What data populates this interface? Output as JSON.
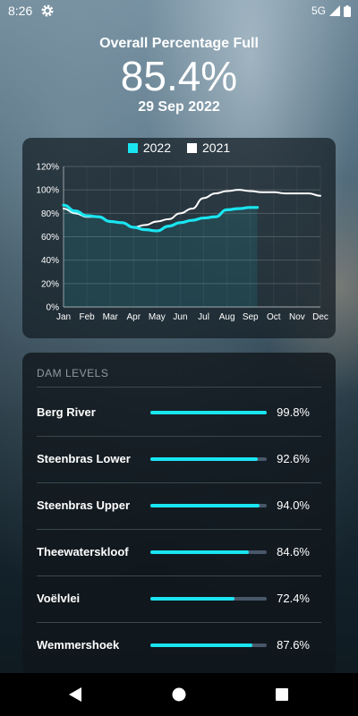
{
  "status": {
    "time": "8:26",
    "network": "5G",
    "icons": [
      "gear-icon",
      "signal-icon",
      "battery-icon"
    ]
  },
  "header": {
    "label": "Overall Percentage Full",
    "value": "85.4%",
    "date": "29 Sep 2022"
  },
  "chart_data": {
    "type": "line",
    "categories": [
      "Jan",
      "Feb",
      "Mar",
      "Apr",
      "May",
      "Jun",
      "Jul",
      "Aug",
      "Sep",
      "Oct",
      "Nov",
      "Dec"
    ],
    "yticks": [
      "0%",
      "20%",
      "40%",
      "60%",
      "80%",
      "100%",
      "120%"
    ],
    "ylim": [
      0,
      120
    ],
    "legend_position": "top",
    "grid": true,
    "series": [
      {
        "name": "2022",
        "color": "#19e5f0",
        "x": [
          0,
          0.5,
          1,
          1.5,
          2,
          2.5,
          3,
          3.5,
          4,
          4.5,
          5,
          5.5,
          6,
          6.5,
          7,
          7.5,
          8,
          8.3
        ],
        "values": [
          87,
          82,
          78,
          77,
          73,
          72,
          68,
          66,
          65,
          69,
          72,
          74,
          76,
          77,
          83,
          84,
          85,
          85
        ]
      },
      {
        "name": "2021",
        "color": "#ffffff",
        "x": [
          0,
          0.5,
          1,
          1.5,
          2,
          2.5,
          3,
          3.5,
          4,
          4.5,
          5,
          5.5,
          6,
          6.5,
          7,
          7.5,
          8,
          8.5,
          9,
          9.5,
          10,
          10.5,
          11
        ],
        "values": [
          84,
          80,
          77,
          77,
          73,
          72,
          68,
          70,
          73,
          75,
          80,
          84,
          93,
          97,
          99,
          100,
          99,
          98,
          98,
          97,
          97,
          97,
          95
        ]
      }
    ]
  },
  "dams": {
    "title": "DAM LEVELS",
    "items": [
      {
        "name": "Berg River",
        "percent": 99.8,
        "label": "99.8%"
      },
      {
        "name": "Steenbras Lower",
        "percent": 92.6,
        "label": "92.6%"
      },
      {
        "name": "Steenbras Upper",
        "percent": 94.0,
        "label": "94.0%"
      },
      {
        "name": "Theewaterskloof",
        "percent": 84.6,
        "label": "84.6%"
      },
      {
        "name": "Voëlvlei",
        "percent": 72.4,
        "label": "72.4%"
      },
      {
        "name": "Wemmershoek",
        "percent": 87.6,
        "label": "87.6%"
      }
    ]
  },
  "colors": {
    "accent": "#19e5f0",
    "track": "#49576a"
  },
  "nav": {
    "icons": [
      "back-icon",
      "home-icon",
      "recents-icon"
    ]
  }
}
